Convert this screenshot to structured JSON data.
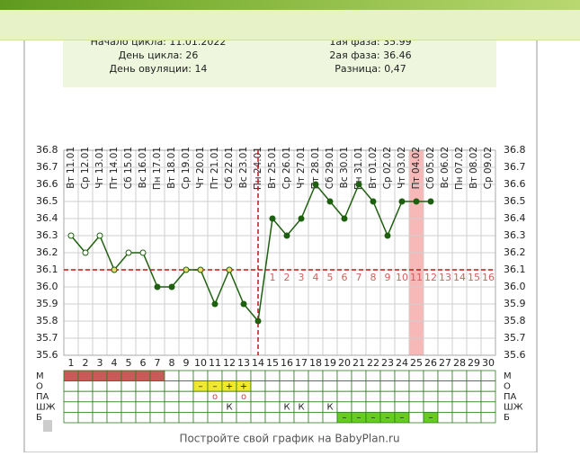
{
  "info": {
    "left": [
      "Начало цикла: 11.01.2022",
      "День цикла: 26",
      "День овуляции: 14"
    ],
    "right": [
      "1ая фаза: 35.99",
      "2ая фаза: 36.46",
      "Разница: 0,47"
    ]
  },
  "chart_data": {
    "type": "line",
    "categories": [
      "Вт 11.01",
      "Ср 12.01",
      "Чт 13.01",
      "Пт 14.01",
      "Сб 15.01",
      "Вс 16.01",
      "Пн 17.01",
      "Вт 18.01",
      "Ср 19.01",
      "Чт 20.01",
      "Пт 21.01",
      "Сб 22.01",
      "Вс 23.01",
      "Пн 24.01",
      "Вт 25.01",
      "Ср 26.01",
      "Чт 27.01",
      "Пт 28.01",
      "Сб 29.01",
      "Вс 30.01",
      "Пн 31.01",
      "Вт 01.02",
      "Ср 02.02",
      "Чт 03.02",
      "Пт 04.02",
      "Сб 05.02",
      "Вс 06.02",
      "Пн 07.02",
      "Вт 08.02",
      "Ср 09.02"
    ],
    "days": [
      1,
      2,
      3,
      4,
      5,
      6,
      7,
      8,
      9,
      10,
      11,
      12,
      13,
      14,
      15,
      16,
      17,
      18,
      19,
      20,
      21,
      22,
      23,
      24,
      25,
      26,
      27,
      28,
      29,
      30
    ],
    "values": [
      36.3,
      36.2,
      36.3,
      36.1,
      36.2,
      36.2,
      36.0,
      36.0,
      36.1,
      36.1,
      35.9,
      36.1,
      35.9,
      35.8,
      36.4,
      36.3,
      36.4,
      36.6,
      36.5,
      36.4,
      36.6,
      36.5,
      36.3,
      36.5,
      36.5,
      36.5,
      null,
      null,
      null,
      null
    ],
    "point_fill": [
      "#ffffff",
      "#ffffff",
      "#ffffff",
      "#e8e070",
      "#ffffff",
      "#ffffff",
      "#1f5f10",
      "#1f5f10",
      "#e8e070",
      "#e8e070",
      "#1f5f10",
      "#e8e070",
      "#1f5f10",
      "#1f5f10",
      "#1f5f10",
      "#1f5f10",
      "#1f5f10",
      "#1f5f10",
      "#1f5f10",
      "#1f5f10",
      "#1f5f10",
      "#1f5f10",
      "#1f5f10",
      "#1f5f10",
      "#1f5f10",
      "#1f5f10",
      null,
      null,
      null,
      null
    ],
    "color": "#1f5f10",
    "ylim": [
      35.6,
      36.8
    ],
    "yticks": [
      36.8,
      36.7,
      36.6,
      36.5,
      36.4,
      36.3,
      36.2,
      36.1,
      {
        "value": 36.0,
        "label": "36.0"
      },
      35.9,
      35.8,
      35.7,
      35.6
    ],
    "grid": true,
    "coverline": 36.1,
    "ovulation_day": 14,
    "highlight_day": 25,
    "phase2_days": [
      1,
      2,
      3,
      4,
      5,
      6,
      7,
      8,
      9,
      10,
      11,
      12,
      13,
      14,
      15,
      16
    ],
    "table": [
      {
        "label": "М",
        "cells": [
          null,
          null,
          null,
          null,
          null,
          null,
          null,
          null,
          null,
          null,
          null,
          null,
          null,
          null,
          null,
          null,
          null,
          null,
          null,
          null,
          null,
          null,
          null,
          null,
          null,
          null,
          null,
          null,
          null,
          null
        ],
        "fill": [
          "#c85a5a",
          "#c85a5a",
          "#c85a5a",
          "#c85a5a",
          "#c85a5a",
          "#c85a5a",
          "#c85a5a",
          null,
          null,
          null,
          null,
          null,
          null,
          null,
          null,
          null,
          null,
          null,
          null,
          null,
          null,
          null,
          null,
          null,
          null,
          null,
          null,
          null,
          null,
          null
        ]
      },
      {
        "label": "О",
        "cells": [
          null,
          null,
          null,
          null,
          null,
          null,
          null,
          null,
          null,
          "–",
          "–",
          "+",
          "+",
          null,
          null,
          null,
          null,
          null,
          null,
          null,
          null,
          null,
          null,
          null,
          null,
          null,
          null,
          null,
          null,
          null
        ],
        "fill": [
          null,
          null,
          null,
          null,
          null,
          null,
          null,
          null,
          null,
          "#f0e830",
          "#f0e830",
          "#f0e830",
          "#f0e830",
          null,
          null,
          null,
          null,
          null,
          null,
          null,
          null,
          null,
          null,
          null,
          null,
          null,
          null,
          null,
          null,
          null
        ]
      },
      {
        "label": "ПА",
        "cells": [
          null,
          null,
          null,
          null,
          null,
          null,
          null,
          null,
          null,
          null,
          "о",
          null,
          "о",
          null,
          null,
          null,
          null,
          null,
          null,
          null,
          null,
          null,
          null,
          null,
          null,
          null,
          null,
          null,
          null,
          null
        ],
        "fill": [
          null,
          null,
          null,
          null,
          null,
          null,
          null,
          null,
          null,
          null,
          null,
          null,
          null,
          null,
          null,
          null,
          null,
          null,
          null,
          null,
          null,
          null,
          null,
          null,
          null,
          null,
          null,
          null,
          null,
          null
        ]
      },
      {
        "label": "ШЖ",
        "cells": [
          null,
          null,
          null,
          null,
          null,
          null,
          null,
          null,
          null,
          null,
          null,
          "К",
          null,
          null,
          null,
          "К",
          "К",
          null,
          "К",
          null,
          null,
          null,
          null,
          null,
          null,
          null,
          null,
          null,
          null,
          null
        ],
        "fill": [
          null,
          null,
          null,
          null,
          null,
          null,
          null,
          null,
          null,
          null,
          null,
          null,
          null,
          null,
          null,
          null,
          null,
          null,
          null,
          null,
          null,
          null,
          null,
          null,
          null,
          null,
          null,
          null,
          null,
          null
        ]
      },
      {
        "label": "Б",
        "cells": [
          null,
          null,
          null,
          null,
          null,
          null,
          null,
          null,
          null,
          null,
          null,
          null,
          null,
          null,
          null,
          null,
          null,
          null,
          null,
          "–",
          "–",
          "–",
          "–",
          "–",
          null,
          "–",
          null,
          null,
          null,
          null
        ],
        "fill": [
          null,
          null,
          null,
          null,
          null,
          null,
          null,
          null,
          null,
          null,
          null,
          null,
          null,
          null,
          null,
          null,
          null,
          null,
          null,
          "#66cc22",
          "#66cc22",
          "#66cc22",
          "#66cc22",
          "#66cc22",
          null,
          "#66cc22",
          null,
          null,
          null,
          null
        ]
      }
    ]
  },
  "footer": "Постройте свой график на BabyPlan.ru"
}
